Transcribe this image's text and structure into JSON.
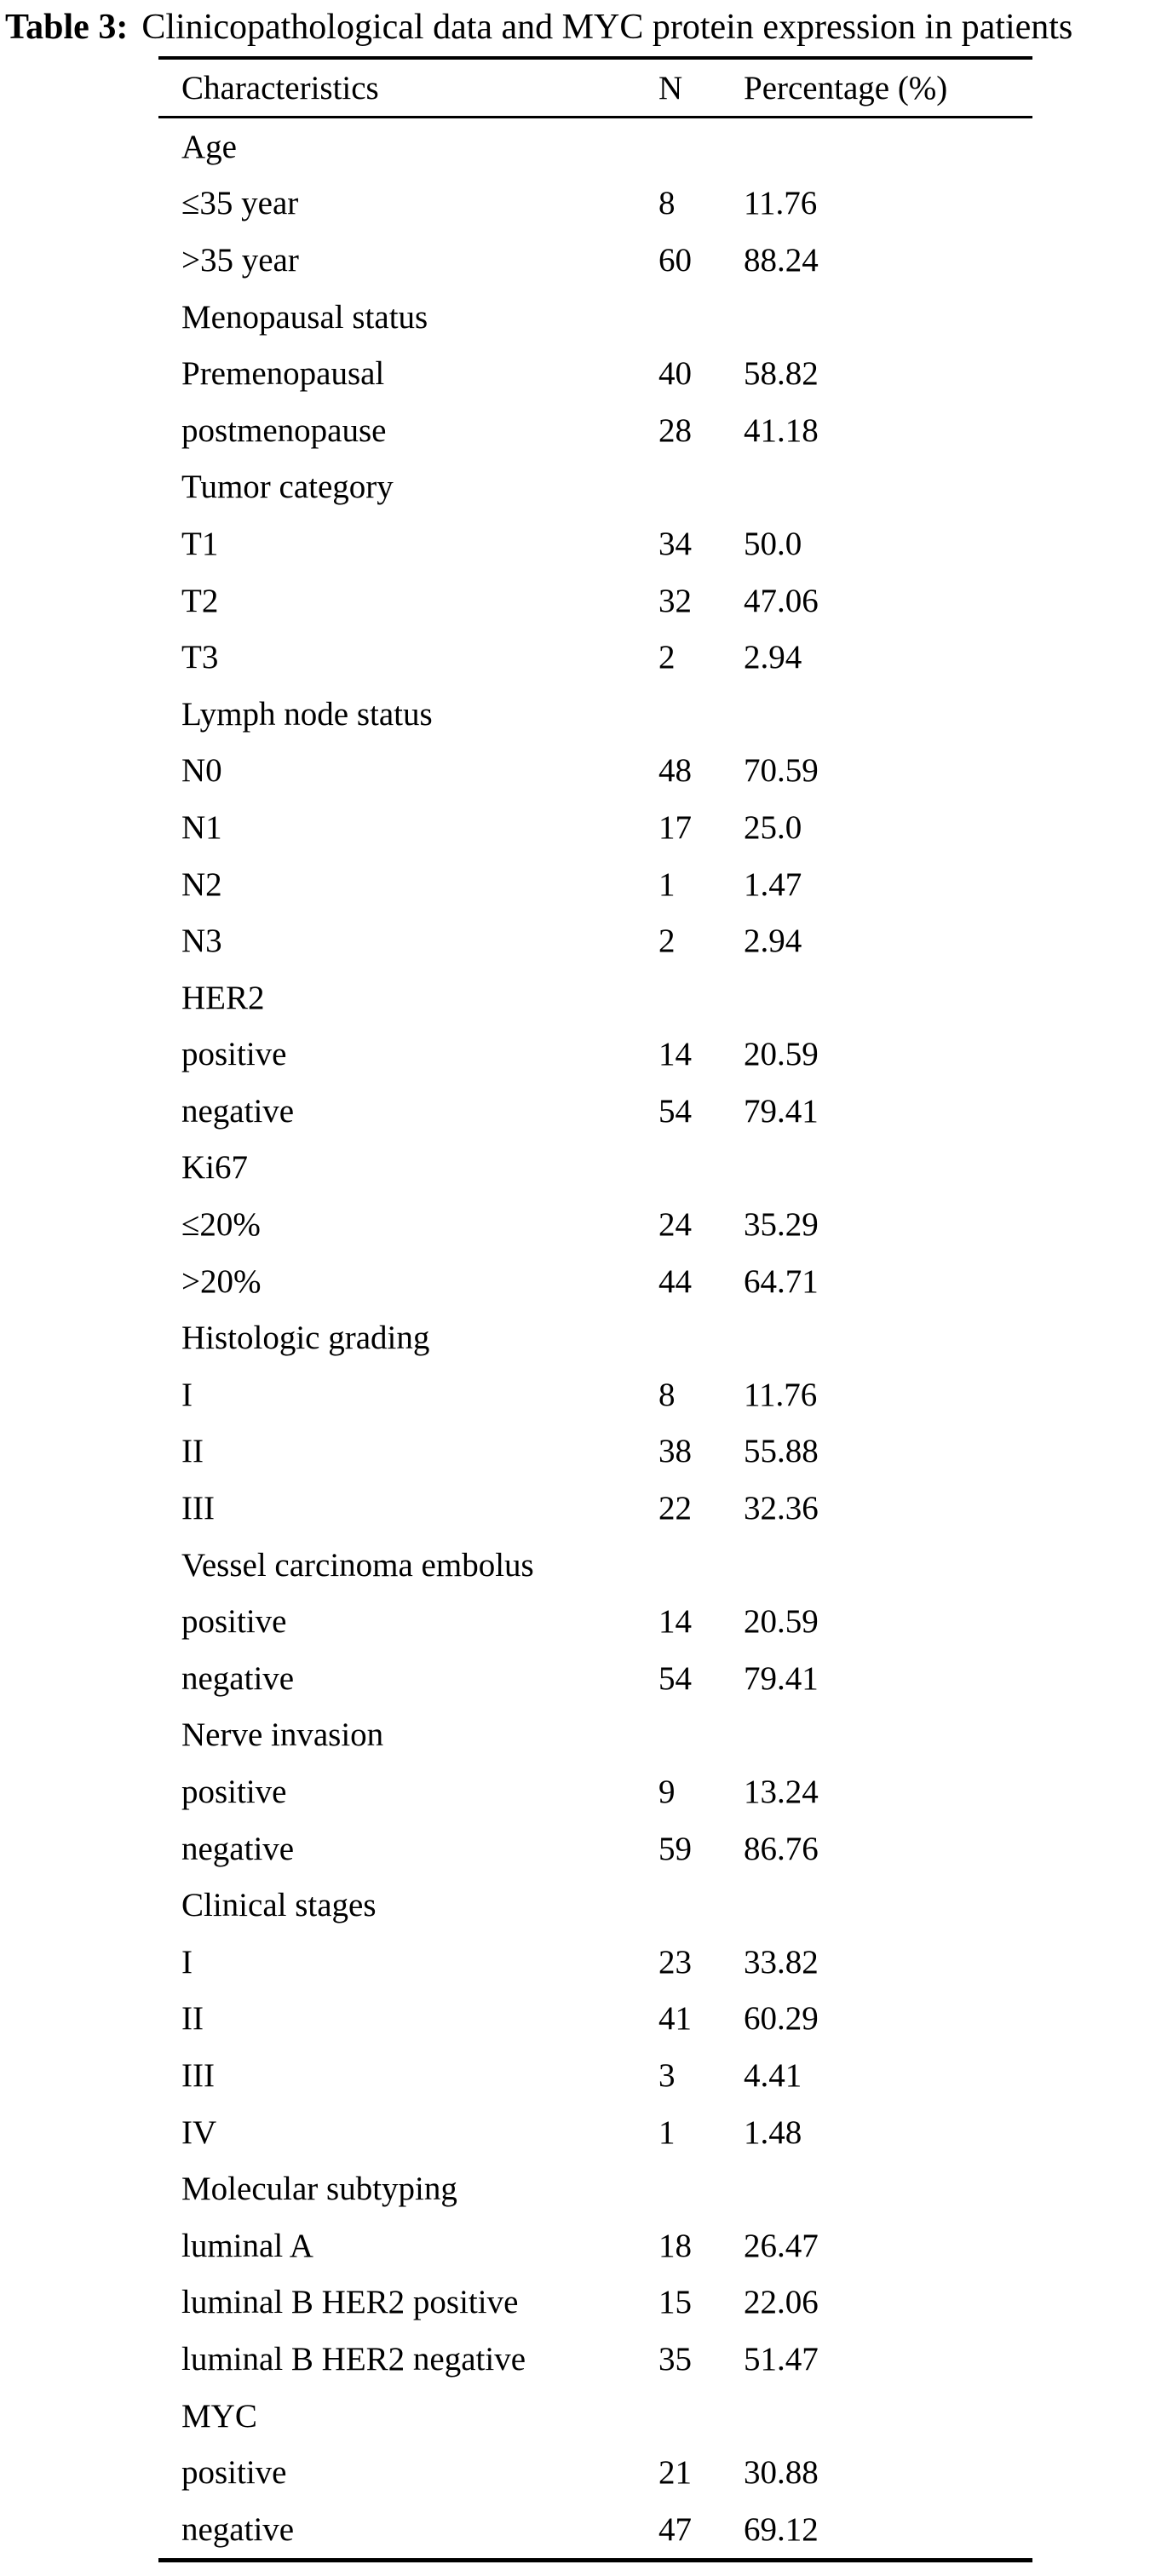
{
  "caption": {
    "label": "Table 3:",
    "text": "Clinicopathological data and MYC protein expression in patients"
  },
  "table": {
    "headers": [
      "Characteristics",
      "N",
      "Percentage (%)"
    ],
    "rows": [
      {
        "label": "Age",
        "n": "",
        "pct": "",
        "section": true
      },
      {
        "label": "≤35 year",
        "n": "8",
        "pct": "11.76"
      },
      {
        "label": ">35 year",
        "n": "60",
        "pct": "88.24"
      },
      {
        "label": "Menopausal status",
        "n": "",
        "pct": "",
        "section": true
      },
      {
        "label": "Premenopausal",
        "n": "40",
        "pct": "58.82"
      },
      {
        "label": "postmenopause",
        "n": "28",
        "pct": "41.18"
      },
      {
        "label": "Tumor category",
        "n": "",
        "pct": "",
        "section": true
      },
      {
        "label": "T1",
        "n": "34",
        "pct": "50.0"
      },
      {
        "label": "T2",
        "n": "32",
        "pct": "47.06"
      },
      {
        "label": "T3",
        "n": "2",
        "pct": "2.94"
      },
      {
        "label": "Lymph node status",
        "n": "",
        "pct": "",
        "section": true
      },
      {
        "label": "N0",
        "n": "48",
        "pct": "70.59"
      },
      {
        "label": "N1",
        "n": "17",
        "pct": "25.0"
      },
      {
        "label": "N2",
        "n": "1",
        "pct": "1.47"
      },
      {
        "label": "N3",
        "n": "2",
        "pct": "2.94"
      },
      {
        "label": "HER2",
        "n": "",
        "pct": "",
        "section": true
      },
      {
        "label": "positive",
        "n": "14",
        "pct": "20.59"
      },
      {
        "label": "negative",
        "n": "54",
        "pct": "79.41"
      },
      {
        "label": "Ki67",
        "n": "",
        "pct": "",
        "section": true
      },
      {
        "label": "≤20%",
        "n": "24",
        "pct": "35.29"
      },
      {
        "label": ">20%",
        "n": "44",
        "pct": "64.71"
      },
      {
        "label": "Histologic grading",
        "n": "",
        "pct": "",
        "section": true
      },
      {
        "label": "I",
        "n": "8",
        "pct": "11.76"
      },
      {
        "label": "II",
        "n": "38",
        "pct": "55.88"
      },
      {
        "label": "III",
        "n": "22",
        "pct": "32.36"
      },
      {
        "label": "Vessel carcinoma embolus",
        "n": "",
        "pct": "",
        "section": true
      },
      {
        "label": "positive",
        "n": "14",
        "pct": "20.59"
      },
      {
        "label": "negative",
        "n": "54",
        "pct": "79.41"
      },
      {
        "label": "Nerve invasion",
        "n": "",
        "pct": "",
        "section": true
      },
      {
        "label": "positive",
        "n": "9",
        "pct": "13.24"
      },
      {
        "label": "negative",
        "n": "59",
        "pct": "86.76"
      },
      {
        "label": "Clinical stages",
        "n": "",
        "pct": "",
        "section": true
      },
      {
        "label": "I",
        "n": "23",
        "pct": "33.82"
      },
      {
        "label": "II",
        "n": "41",
        "pct": "60.29"
      },
      {
        "label": "III",
        "n": "3",
        "pct": "4.41"
      },
      {
        "label": "IV",
        "n": "1",
        "pct": "1.48"
      },
      {
        "label": "Molecular subtyping",
        "n": "",
        "pct": "",
        "section": true
      },
      {
        "label": "luminal A",
        "n": "18",
        "pct": "26.47"
      },
      {
        "label": "luminal B HER2 positive",
        "n": "15",
        "pct": "22.06"
      },
      {
        "label": "luminal B HER2 negative",
        "n": "35",
        "pct": "51.47"
      },
      {
        "label": "MYC",
        "n": "",
        "pct": "",
        "section": true
      },
      {
        "label": "positive",
        "n": "21",
        "pct": "30.88"
      },
      {
        "label": "negative",
        "n": "47",
        "pct": "69.12"
      }
    ]
  }
}
